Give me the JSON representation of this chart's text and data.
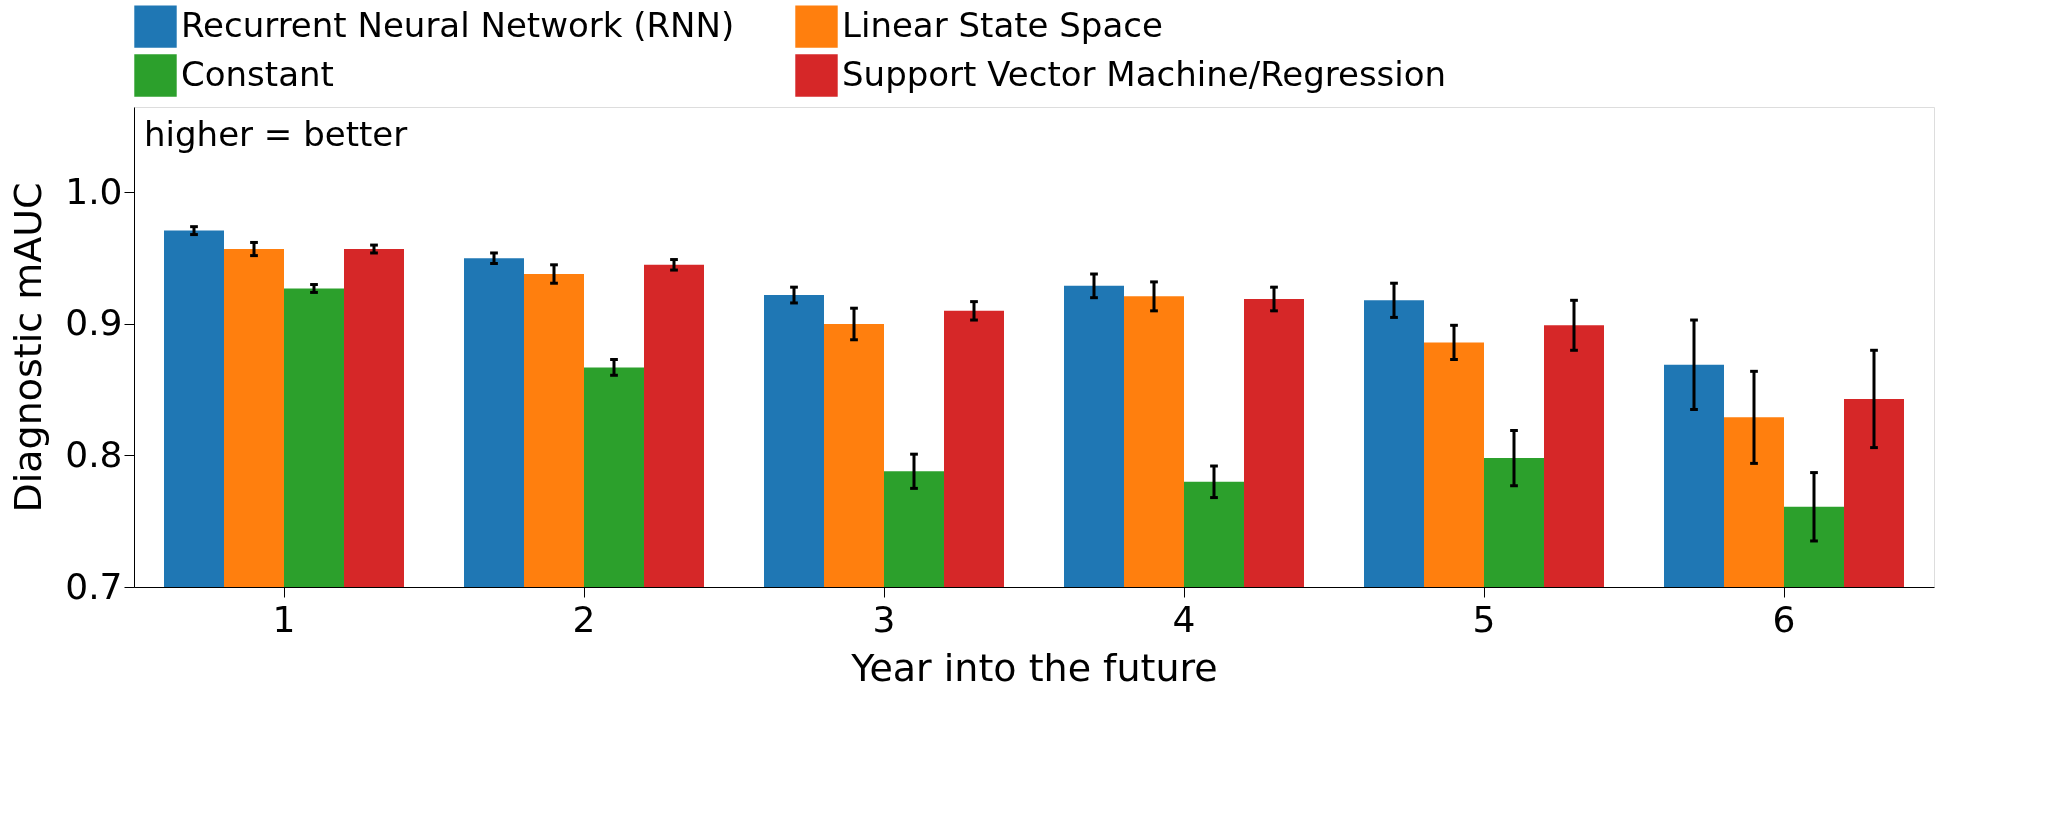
{
  "chart_data": {
    "type": "bar",
    "xlabel": "Year into the future",
    "ylabel": "Diagnostic mAUC",
    "categories": [
      "1",
      "2",
      "3",
      "4",
      "5",
      "6"
    ],
    "series": [
      {
        "name": "Recurrent Neural Network (RNN)",
        "color": "#1f77b4",
        "values": [
          0.971,
          0.95,
          0.922,
          0.929,
          0.918,
          0.869
        ],
        "errors": [
          0.003,
          0.004,
          0.006,
          0.009,
          0.013,
          0.034
        ]
      },
      {
        "name": "Linear State Space",
        "color": "#ff7f0e",
        "values": [
          0.957,
          0.938,
          0.9,
          0.921,
          0.886,
          0.829
        ],
        "errors": [
          0.005,
          0.007,
          0.012,
          0.011,
          0.013,
          0.035
        ]
      },
      {
        "name": "Constant",
        "color": "#2ca02c",
        "values": [
          0.927,
          0.867,
          0.788,
          0.78,
          0.798,
          0.761
        ],
        "errors": [
          0.003,
          0.006,
          0.013,
          0.012,
          0.021,
          0.026
        ]
      },
      {
        "name": "Support Vector Machine/Regression",
        "color": "#d62728",
        "values": [
          0.957,
          0.945,
          0.91,
          0.919,
          0.899,
          0.843
        ],
        "errors": [
          0.003,
          0.004,
          0.007,
          0.009,
          0.019,
          0.037
        ]
      }
    ],
    "ylim": [
      0.7,
      1.065
    ],
    "yticks": [
      0.7,
      0.8,
      0.9,
      {
        "value": 1.0,
        "label": "1.0"
      }
    ],
    "annotations": [
      "higher = better"
    ],
    "legend": "top",
    "grid": false
  }
}
